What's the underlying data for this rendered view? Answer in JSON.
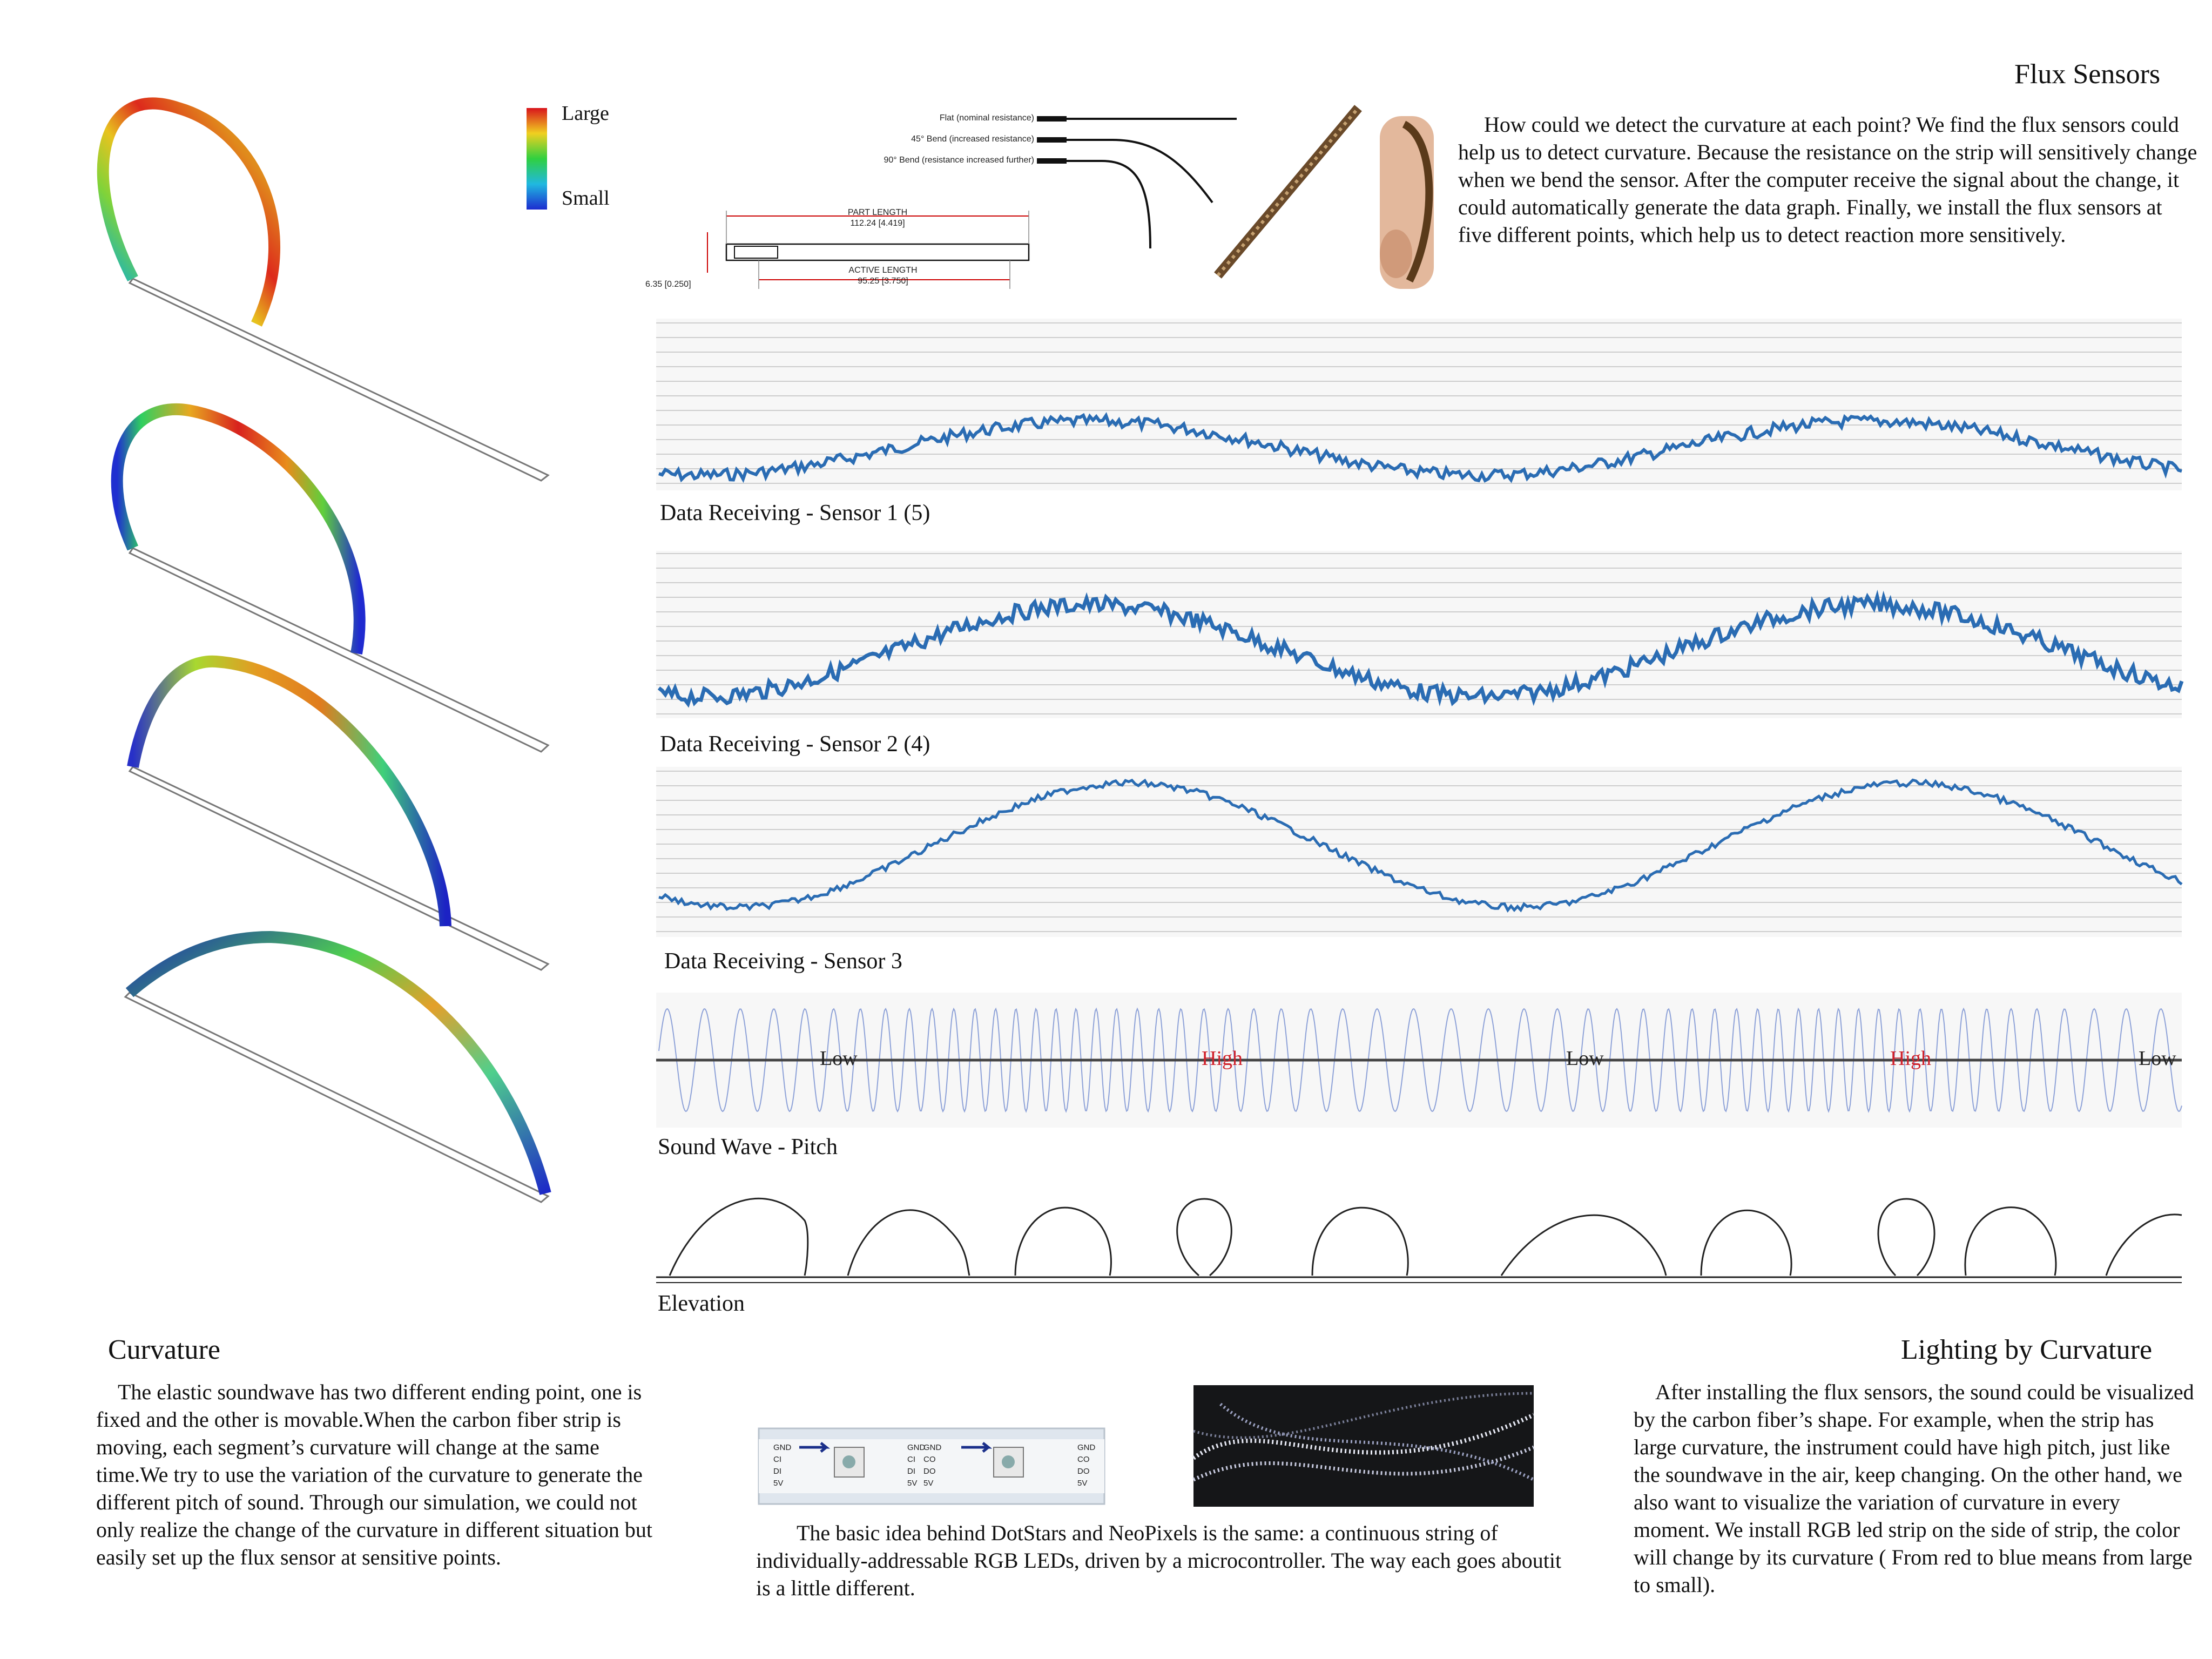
{
  "colors": {
    "accent_blue": "#2a6cb3",
    "high_red": "#d0202a",
    "text": "#111111"
  },
  "legend": {
    "large": "Large",
    "small": "Small"
  },
  "flux_title": "Flux Sensors",
  "flux_text": "How could we detect the curvature at each point? We find the flux sensors could help us to detect curvature. Because the resistance on the strip will sensitively change when we bend the sensor. After the computer receive the signal about the change, it could automatically generate the data graph. Finally, we install the flux sensors at five different points, which help us to detect reaction more sensitively.",
  "sensor_diagram": {
    "flat": "Flat (nominal resistance)",
    "bend45": "45° Bend (increased resistance)",
    "bend90": "90° Bend (resistance increased further)",
    "part_length_title": "PART LENGTH",
    "part_length_value": "112.24 [4.419]",
    "active_length_title": "ACTIVE LENGTH",
    "active_length_value": "95.25 [3.750]",
    "width_value": "6.35 [0.250]"
  },
  "captions": {
    "sensor1": "Data Receiving - Sensor 1 (5)",
    "sensor2": "Data Receiving - Sensor 2 (4)",
    "sensor3": "Data Receiving - Sensor 3",
    "sound": "Sound Wave - Pitch",
    "elevation": "Elevation"
  },
  "pitch_labels": [
    "Low",
    "High",
    "Low",
    "High",
    "Low"
  ],
  "curvature": {
    "title": "Curvature",
    "text": "The elastic soundwave has two different ending point, one is fixed and the other is movable.When the carbon fiber strip is moving, each segment’s curvature will change at the same time.We try to use the variation of the curvature to generate the different pitch of sound. Through our simulation, we could not only realize the change of the curvature in different situation but easily set up the flux sensor at sensitive points."
  },
  "led": {
    "text": "The basic idea behind DotStars and NeoPixels is the same: a continuous string of individually-addressable RGB LEDs, driven by a microcontroller. The way each goes aboutit is a little different.",
    "pins_left": [
      "GND",
      "CI",
      "DI",
      "5V"
    ],
    "pins_right": [
      "GND",
      "CO",
      "DO",
      "5V"
    ]
  },
  "lighting": {
    "title": "Lighting by Curvature",
    "text": "After installing the flux sensors, the sound could be visualized by the carbon fiber’s shape. For example, when the strip has large curvature, the instrument could have high pitch, just like the soundwave in the air, keep changing. On the other hand, we also want to visualize the variation of curvature in every moment. We install RGB led strip on the side of strip, the color will change by its curvature ( From red to blue means from large to small)."
  }
}
